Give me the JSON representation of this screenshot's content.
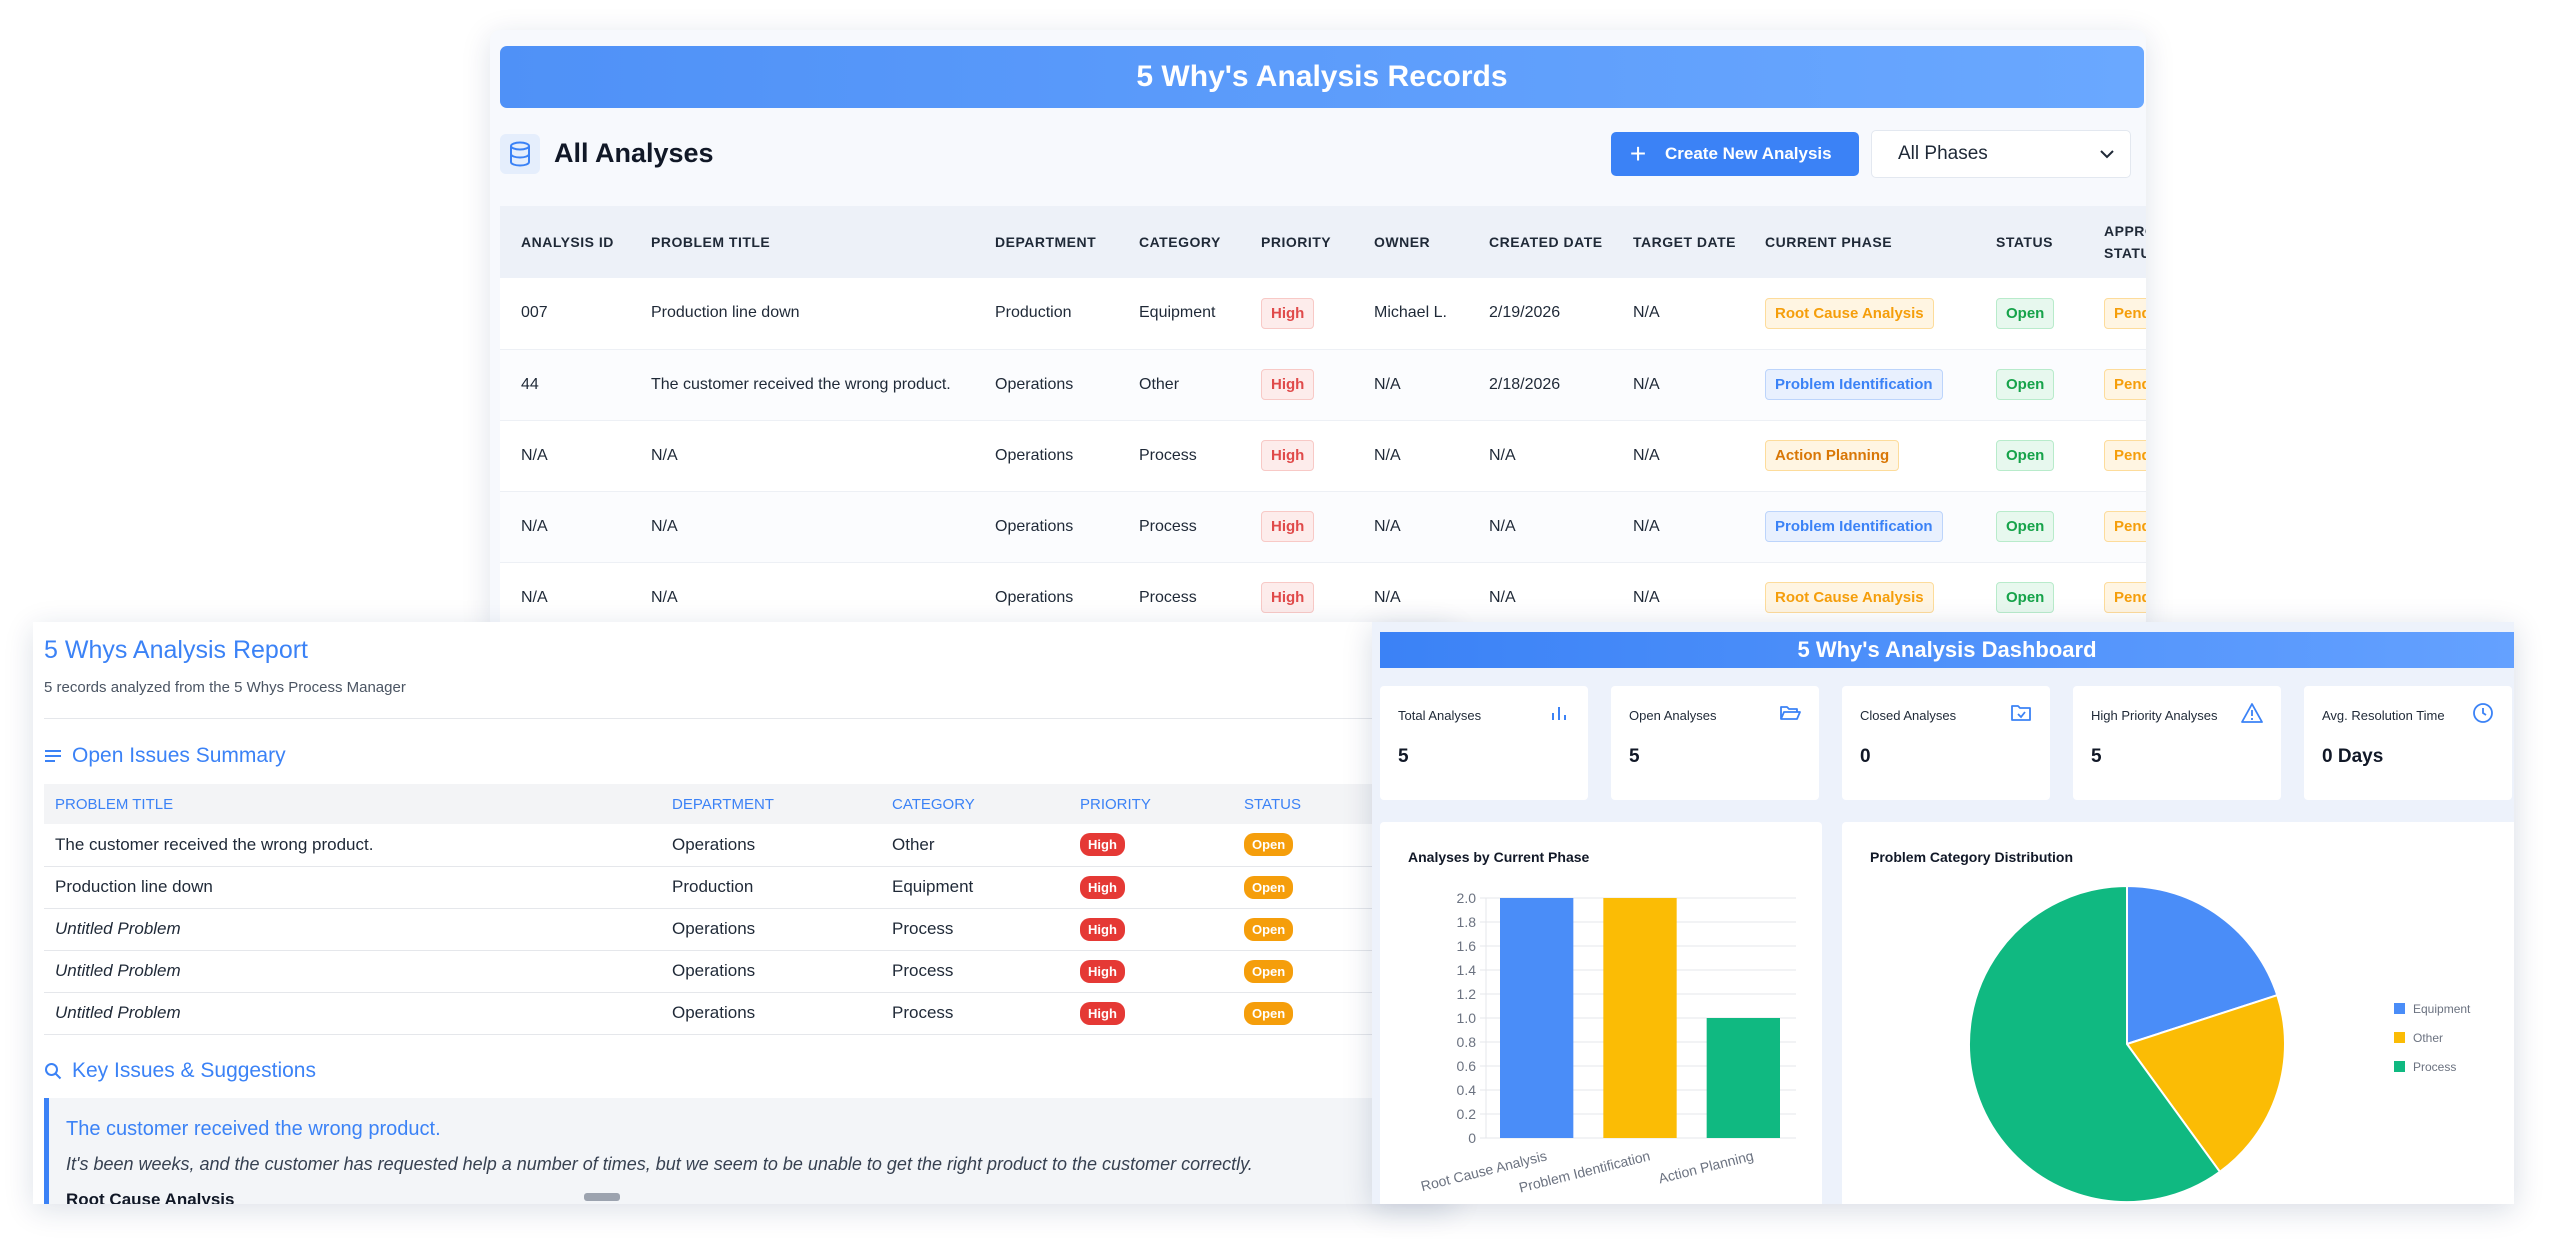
{
  "records": {
    "title": "5 Why's Analysis Records",
    "section_title": "All Analyses",
    "create_button": "Create New Analysis",
    "phase_filter": "All Phases",
    "columns": [
      "Analysis ID",
      "Problem Title",
      "Department",
      "Category",
      "Priority",
      "Owner",
      "Created Date",
      "Target Date",
      "Current Phase",
      "Status",
      "Approval Status"
    ],
    "rows": [
      {
        "id": "007",
        "title": "Production line down",
        "department": "Production",
        "category": "Equipment",
        "priority": "High",
        "owner": "Michael L.",
        "created": "2/19/2026",
        "target": "N/A",
        "phase": "Root Cause Analysis",
        "status": "Open",
        "approval": "Pending"
      },
      {
        "id": "44",
        "title": "The customer received the wrong product.",
        "department": "Operations",
        "category": "Other",
        "priority": "High",
        "owner": "N/A",
        "created": "2/18/2026",
        "target": "N/A",
        "phase": "Problem Identification",
        "status": "Open",
        "approval": "Pending"
      },
      {
        "id": "N/A",
        "title": "N/A",
        "department": "Operations",
        "category": "Process",
        "priority": "High",
        "owner": "N/A",
        "created": "N/A",
        "target": "N/A",
        "phase": "Action Planning",
        "status": "Open",
        "approval": "Pending"
      },
      {
        "id": "N/A",
        "title": "N/A",
        "department": "Operations",
        "category": "Process",
        "priority": "High",
        "owner": "N/A",
        "created": "N/A",
        "target": "N/A",
        "phase": "Problem Identification",
        "status": "Open",
        "approval": "Pending"
      },
      {
        "id": "N/A",
        "title": "N/A",
        "department": "Operations",
        "category": "Process",
        "priority": "High",
        "owner": "N/A",
        "created": "N/A",
        "target": "N/A",
        "phase": "Root Cause Analysis",
        "status": "Open",
        "approval": "Pending"
      }
    ]
  },
  "report": {
    "title": "5 Whys Analysis Report",
    "subtitle": "5 records analyzed from the 5 Whys Process Manager",
    "open_issues_title": "Open Issues Summary",
    "columns": [
      "Problem Title",
      "Department",
      "Category",
      "Priority",
      "Status"
    ],
    "rows": [
      {
        "title": "The customer received the wrong product.",
        "department": "Operations",
        "category": "Other",
        "priority": "High",
        "status": "Open"
      },
      {
        "title": "Production line down",
        "department": "Production",
        "category": "Equipment",
        "priority": "High",
        "status": "Open"
      },
      {
        "title": "Untitled Problem",
        "department": "Operations",
        "category": "Process",
        "priority": "High",
        "status": "Open"
      },
      {
        "title": "Untitled Problem",
        "department": "Operations",
        "category": "Process",
        "priority": "High",
        "status": "Open"
      },
      {
        "title": "Untitled Problem",
        "department": "Operations",
        "category": "Process",
        "priority": "High",
        "status": "Open"
      }
    ],
    "key_issues_title": "Key Issues & Suggestions",
    "callout_title": "The customer received the wrong product.",
    "callout_desc": "It's been weeks, and the customer has requested help a number of times, but we seem to be unable to get the right product to the customer correctly.",
    "callout_section": "Root Cause Analysis"
  },
  "dashboard": {
    "title": "5 Why's Analysis Dashboard",
    "kpis": [
      {
        "label": "Total Analyses",
        "value": "5",
        "icon": "bar-chart-icon"
      },
      {
        "label": "Open Analyses",
        "value": "5",
        "icon": "folder-open-icon"
      },
      {
        "label": "Closed Analyses",
        "value": "0",
        "icon": "folder-check-icon"
      },
      {
        "label": "High Priority Analyses",
        "value": "5",
        "icon": "warning-icon"
      },
      {
        "label": "Avg. Resolution Time",
        "value": "0 Days",
        "icon": "clock-icon"
      }
    ]
  },
  "colors": {
    "blue": "#4a8df8",
    "amber": "#fbbc05",
    "green": "#10b981"
  },
  "chart_data": [
    {
      "type": "bar",
      "title": "Analyses by Current Phase",
      "categories": [
        "Root Cause Analysis",
        "Problem Identification",
        "Action Planning"
      ],
      "values": [
        2,
        2,
        1
      ],
      "ylim": [
        0,
        2
      ],
      "yticks": [
        "0",
        "0.2",
        "0.4",
        "0.6",
        "0.8",
        "1.0",
        "1.2",
        "1.4",
        "1.6",
        "1.8",
        "2.0"
      ],
      "grid": true
    },
    {
      "type": "pie",
      "title": "Problem Category Distribution",
      "labels": [
        "Equipment",
        "Other",
        "Process"
      ],
      "values": [
        1,
        1,
        3
      ],
      "legend": "right"
    }
  ]
}
